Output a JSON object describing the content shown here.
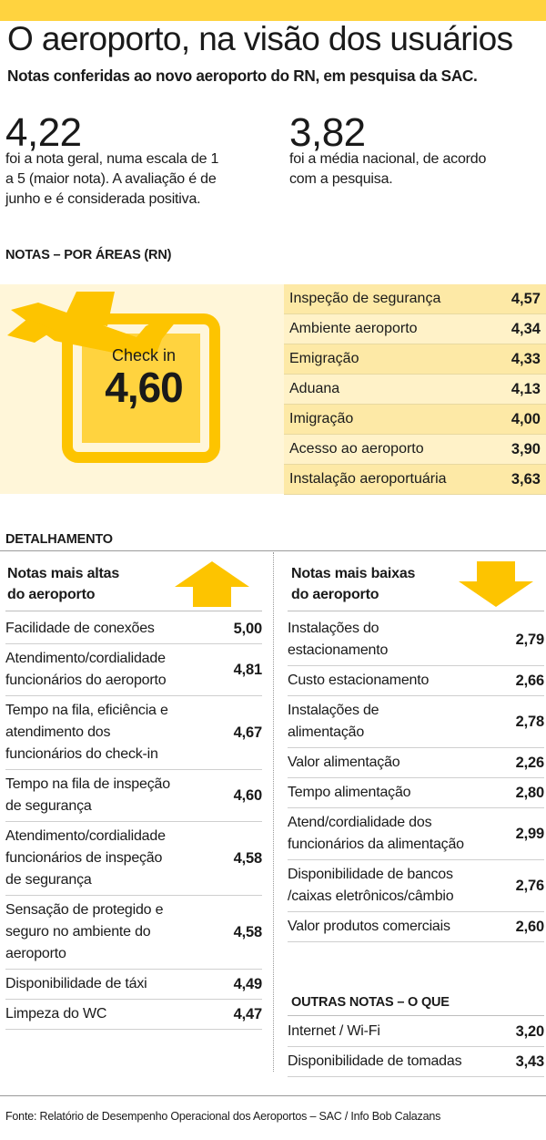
{
  "header": {
    "title": "O aeroporto, na visão dos usuários",
    "subtitle": "Notas conferidas ao novo aeroporto do RN, em pesquisa da SAC."
  },
  "stats": {
    "left": {
      "value": "4,22",
      "text": "foi a nota geral, numa escala de 1\na 5 (maior nota). A avaliação é de\njunho e é considerada positiva."
    },
    "right": {
      "value": "3,82",
      "text": "foi a média nacional, de acordo\ncom a pesquisa."
    }
  },
  "areas": {
    "heading": "NOTAS – POR ÁREAS (RN)",
    "checkin": {
      "label": "Check in",
      "value": "4,60"
    }
  },
  "detail": {
    "heading": "DETALHAMENTO",
    "highest_heading": "Notas mais altas\ndo aeroporto",
    "lowest_heading": "Notas mais baixas\ndo aeroporto",
    "others_heading": "OUTRAS NOTAS – O QUE"
  },
  "footer": "Fonte: Relatório de Desempenho Operacional dos Aeroportos – SAC / Info Bob Calazans",
  "colors": {
    "accent": "#ffd33f",
    "icon": "#fdc400",
    "tint": "#fff2c8"
  },
  "chart_data": [
    {
      "type": "table",
      "title": "NOTAS – POR ÁREAS (RN)",
      "rows": [
        {
          "label": "Inspeção de segurança",
          "value": "4,57"
        },
        {
          "label": "Ambiente aeroporto",
          "value": "4,34"
        },
        {
          "label": "Emigração",
          "value": "4,33"
        },
        {
          "label": "Aduana",
          "value": "4,13"
        },
        {
          "label": "Imigração",
          "value": "4,00"
        },
        {
          "label": "Acesso ao aeroporto",
          "value": "3,90"
        },
        {
          "label": "Instalação aeroportuária",
          "value": "3,63"
        }
      ]
    },
    {
      "type": "table",
      "title": "Notas mais altas do aeroporto",
      "rows": [
        {
          "label": "Facilidade de conexões",
          "value": "5,00"
        },
        {
          "label": "Atendimento/cordialidade\nfuncionários do aeroporto",
          "value": "4,81"
        },
        {
          "label": "Tempo na fila, eficiência e\natendimento dos\nfuncionários do check-in",
          "value": "4,67"
        },
        {
          "label": "Tempo na fila de inspeção\nde segurança",
          "value": "4,60"
        },
        {
          "label": "Atendimento/cordialidade\nfuncionários de inspeção\nde segurança",
          "value": "4,58"
        },
        {
          "label": "Sensação de protegido e\nseguro no ambiente do\naeroporto",
          "value": "4,58"
        },
        {
          "label": "Disponibilidade de táxi",
          "value": "4,49"
        },
        {
          "label": "Limpeza do WC",
          "value": "4,47"
        }
      ]
    },
    {
      "type": "table",
      "title": "Notas mais baixas do aeroporto",
      "rows": [
        {
          "label": "Instalações do\nestacionamento",
          "value": "2,79"
        },
        {
          "label": "Custo estacionamento",
          "value": "2,66"
        },
        {
          "label": "Instalações de\nalimentação",
          "value": "2,78"
        },
        {
          "label": "Valor alimentação",
          "value": "2,26"
        },
        {
          "label": "Tempo alimentação",
          "value": "2,80"
        },
        {
          "label": "Atend/cordialidade dos\nfuncionários da alimentação",
          "value": "2,99"
        },
        {
          "label": "Disponibilidade de bancos\n/caixas eletrônicos/câmbio",
          "value": "2,76"
        },
        {
          "label": "Valor produtos comerciais",
          "value": "2,60"
        }
      ]
    },
    {
      "type": "table",
      "title": "OUTRAS NOTAS – O QUE",
      "rows": [
        {
          "label": "Internet / Wi-Fi",
          "value": "3,20"
        },
        {
          "label": "Disponibilidade de tomadas",
          "value": "3,43"
        }
      ]
    }
  ]
}
